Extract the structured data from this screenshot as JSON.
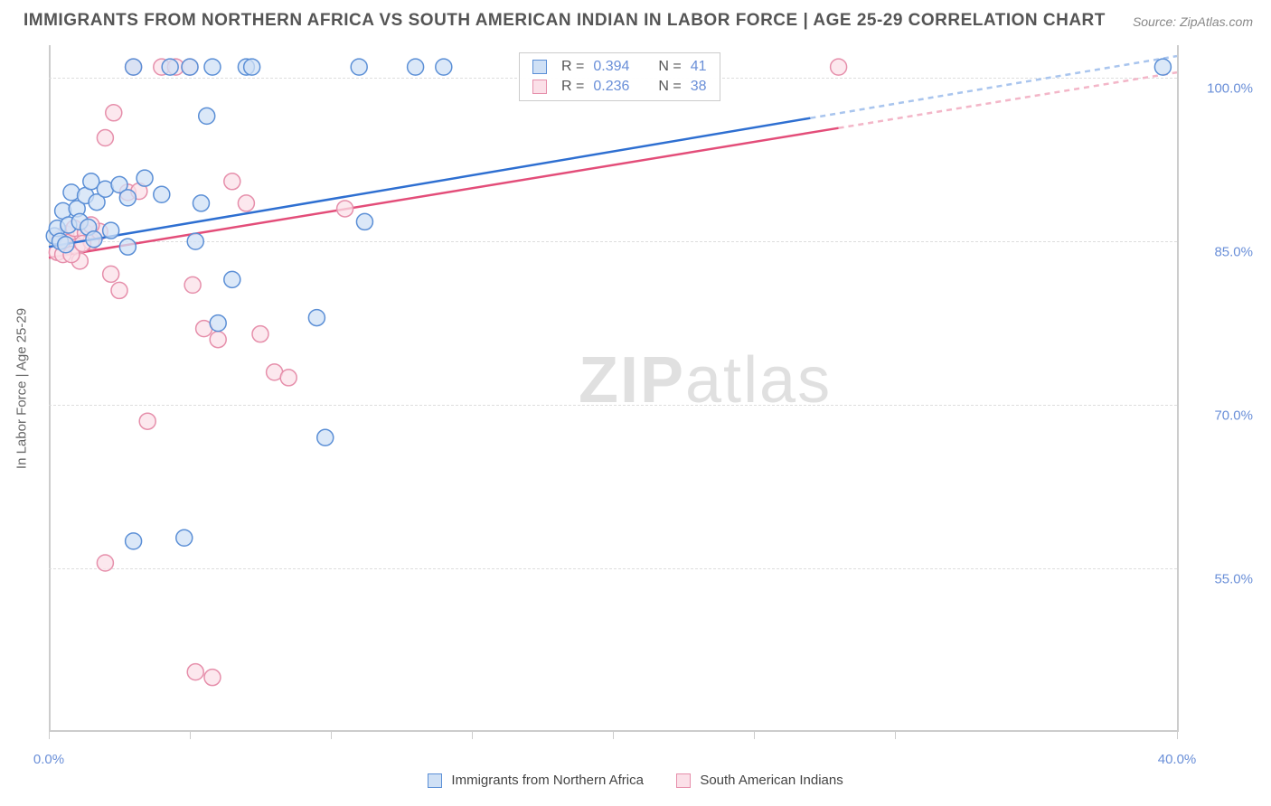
{
  "title": "IMMIGRANTS FROM NORTHERN AFRICA VS SOUTH AMERICAN INDIAN IN LABOR FORCE | AGE 25-29 CORRELATION CHART",
  "source": "Source: ZipAtlas.com",
  "watermark_zip": "ZIP",
  "watermark_atlas": "atlas",
  "y_axis_title": "In Labor Force | Age 25-29",
  "chart": {
    "type": "scatter",
    "background_color": "#ffffff",
    "grid_color": "#dddddd",
    "axis_color": "#cccccc",
    "xlim": [
      0,
      40
    ],
    "ylim": [
      40,
      103
    ],
    "x_ticks": [
      0,
      5,
      10,
      15,
      20,
      25,
      30,
      40
    ],
    "x_tick_labels": {
      "0": "0.0%",
      "40": "40.0%"
    },
    "y_ticks": [
      55,
      70,
      85,
      100
    ],
    "y_tick_labels": {
      "55": "55.0%",
      "70": "70.0%",
      "85": "85.0%",
      "100": "100.0%"
    },
    "marker_radius": 9,
    "marker_stroke_width": 1.5,
    "trendline_width": 2.5,
    "series": [
      {
        "id": "series_blue",
        "label": "Immigrants from Northern Africa",
        "fill": "#cfe0f5",
        "stroke": "#5b8fd6",
        "line_color": "#2e6fd1",
        "R": "0.394",
        "N": "41",
        "trendline": {
          "x1": 0,
          "y1": 84.5,
          "x2": 40,
          "y2": 102.0,
          "dash_from_x": 27,
          "dash_color": "#a9c5ee"
        },
        "points": [
          [
            0.2,
            85.5
          ],
          [
            0.3,
            86.2
          ],
          [
            0.4,
            85.0
          ],
          [
            0.5,
            87.8
          ],
          [
            0.6,
            84.7
          ],
          [
            0.7,
            86.5
          ],
          [
            0.8,
            89.5
          ],
          [
            1.0,
            88.0
          ],
          [
            1.1,
            86.8
          ],
          [
            1.3,
            89.2
          ],
          [
            1.4,
            86.3
          ],
          [
            1.5,
            90.5
          ],
          [
            1.7,
            88.6
          ],
          [
            2.0,
            89.8
          ],
          [
            2.2,
            86.0
          ],
          [
            2.5,
            90.2
          ],
          [
            2.8,
            89.0
          ],
          [
            3.0,
            101.0
          ],
          [
            3.4,
            90.8
          ],
          [
            4.0,
            89.3
          ],
          [
            4.3,
            101.0
          ],
          [
            5.0,
            101.0
          ],
          [
            5.2,
            85.0
          ],
          [
            5.4,
            88.5
          ],
          [
            5.6,
            96.5
          ],
          [
            5.8,
            101.0
          ],
          [
            6.0,
            77.5
          ],
          [
            6.5,
            81.5
          ],
          [
            7.0,
            101.0
          ],
          [
            7.2,
            101.0
          ],
          [
            9.5,
            78.0
          ],
          [
            9.8,
            67.0
          ],
          [
            11.0,
            101.0
          ],
          [
            11.2,
            86.8
          ],
          [
            13.0,
            101.0
          ],
          [
            14.0,
            101.0
          ],
          [
            3.0,
            57.5
          ],
          [
            4.8,
            57.8
          ],
          [
            2.8,
            84.5
          ],
          [
            1.6,
            85.2
          ],
          [
            39.5,
            101.0
          ]
        ]
      },
      {
        "id": "series_pink",
        "label": "South American Indians",
        "fill": "#fbe0e8",
        "stroke": "#e68fab",
        "line_color": "#e34d79",
        "R": "0.236",
        "N": "38",
        "trendline": {
          "x1": 0,
          "y1": 83.5,
          "x2": 40,
          "y2": 100.5,
          "dash_from_x": 28,
          "dash_color": "#f3b6c8"
        },
        "points": [
          [
            0.3,
            84.0
          ],
          [
            0.4,
            85.2
          ],
          [
            0.5,
            83.8
          ],
          [
            0.6,
            85.7
          ],
          [
            0.7,
            84.9
          ],
          [
            0.9,
            86.2
          ],
          [
            1.0,
            84.5
          ],
          [
            1.1,
            83.2
          ],
          [
            1.3,
            85.8
          ],
          [
            1.5,
            85.0
          ],
          [
            1.8,
            85.9
          ],
          [
            2.0,
            94.5
          ],
          [
            2.2,
            82.0
          ],
          [
            2.3,
            96.8
          ],
          [
            2.5,
            80.5
          ],
          [
            2.8,
            89.5
          ],
          [
            3.0,
            101.0
          ],
          [
            3.2,
            89.6
          ],
          [
            3.5,
            68.5
          ],
          [
            4.0,
            101.0
          ],
          [
            4.5,
            101.0
          ],
          [
            5.0,
            101.0
          ],
          [
            5.1,
            81.0
          ],
          [
            5.5,
            77.0
          ],
          [
            6.0,
            76.0
          ],
          [
            6.5,
            90.5
          ],
          [
            7.0,
            88.5
          ],
          [
            7.5,
            76.5
          ],
          [
            8.0,
            73.0
          ],
          [
            8.5,
            72.5
          ],
          [
            10.5,
            88.0
          ],
          [
            2.0,
            55.5
          ],
          [
            5.8,
            45.0
          ],
          [
            5.2,
            45.5
          ],
          [
            28.0,
            101.0
          ],
          [
            1.5,
            86.5
          ],
          [
            0.8,
            83.8
          ],
          [
            1.2,
            84.8
          ]
        ]
      }
    ]
  },
  "correlation_box": {
    "R_label": "R =",
    "N_label": "N ="
  }
}
